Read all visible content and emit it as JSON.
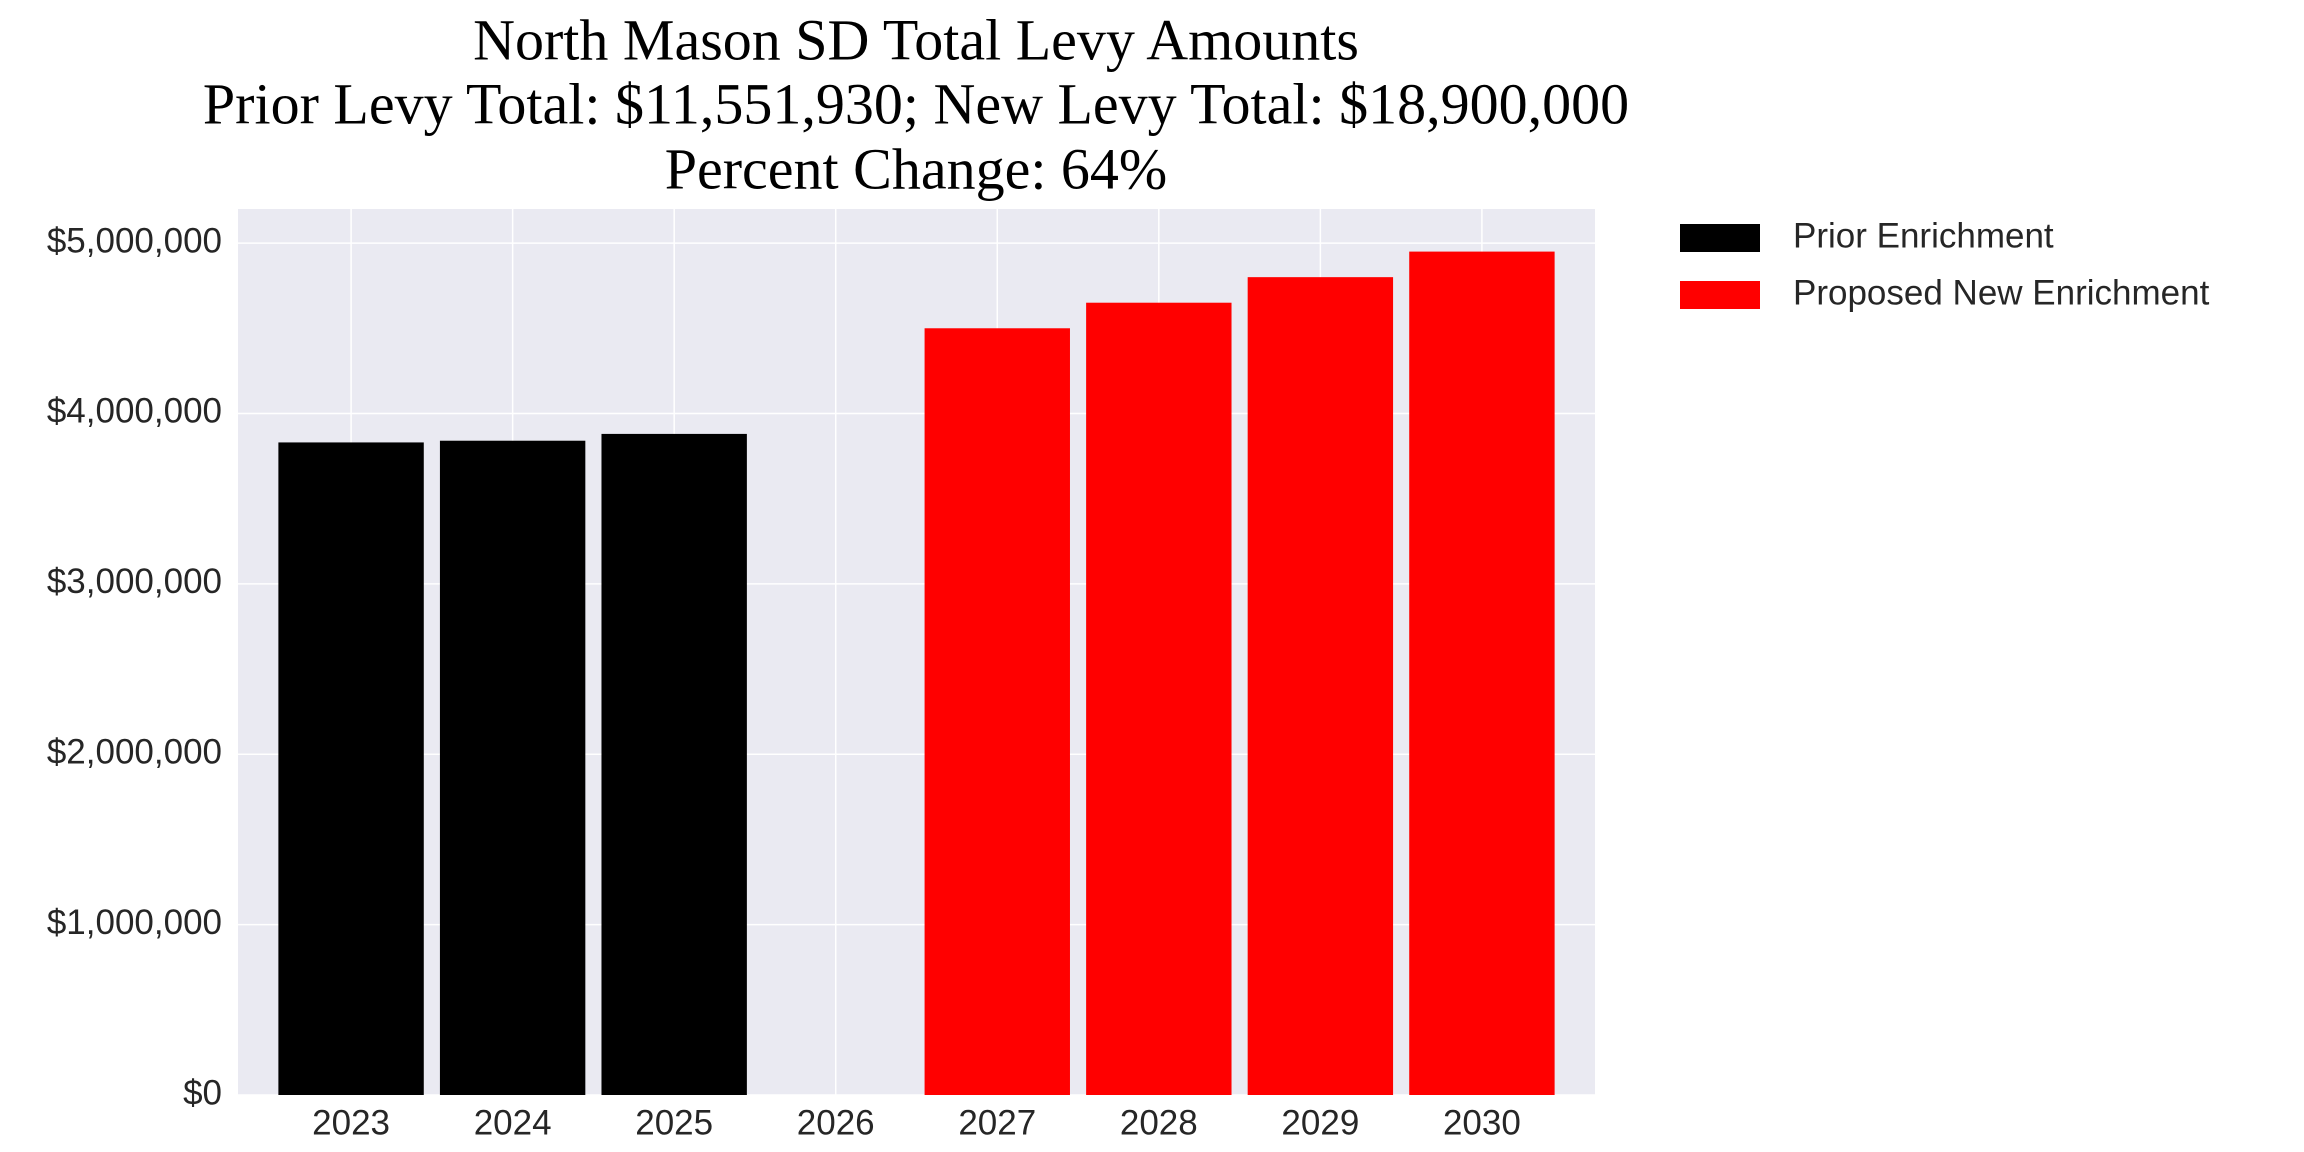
{
  "chart_data": {
    "type": "bar",
    "title": "North Mason SD Total Levy Amounts",
    "subtitle": "Prior Levy Total:  $11,551,930; New Levy Total: $18,900,000",
    "subtitle2": "Percent Change: 64%",
    "x": [
      2023,
      2024,
      2025,
      2026,
      2027,
      2028,
      2029,
      2030
    ],
    "xlim": [
      2022.3,
      2030.7
    ],
    "xticks": [
      2023,
      2024,
      2025,
      2026,
      2027,
      2028,
      2029,
      2030
    ],
    "ylim": [
      0,
      5200000
    ],
    "yticks": [
      {
        "value": 0,
        "label": "$0"
      },
      {
        "value": 1000000,
        "label": "$1,000,000"
      },
      {
        "value": 2000000,
        "label": "$2,000,000"
      },
      {
        "value": 3000000,
        "label": "$3,000,000"
      },
      {
        "value": 4000000,
        "label": "$4,000,000"
      },
      {
        "value": 5000000,
        "label": "$5,000,000"
      }
    ],
    "grid": true,
    "legend": "outside-upper-right",
    "series": [
      {
        "name": "Prior Enrichment",
        "color": "#000000",
        "values": [
          3830000,
          3840000,
          3880000,
          null,
          null,
          null,
          null,
          null
        ]
      },
      {
        "name": "Proposed New Enrichment",
        "color": "#ff0000",
        "values": [
          null,
          null,
          null,
          null,
          4500000,
          4650000,
          4800000,
          4950000
        ]
      }
    ]
  }
}
